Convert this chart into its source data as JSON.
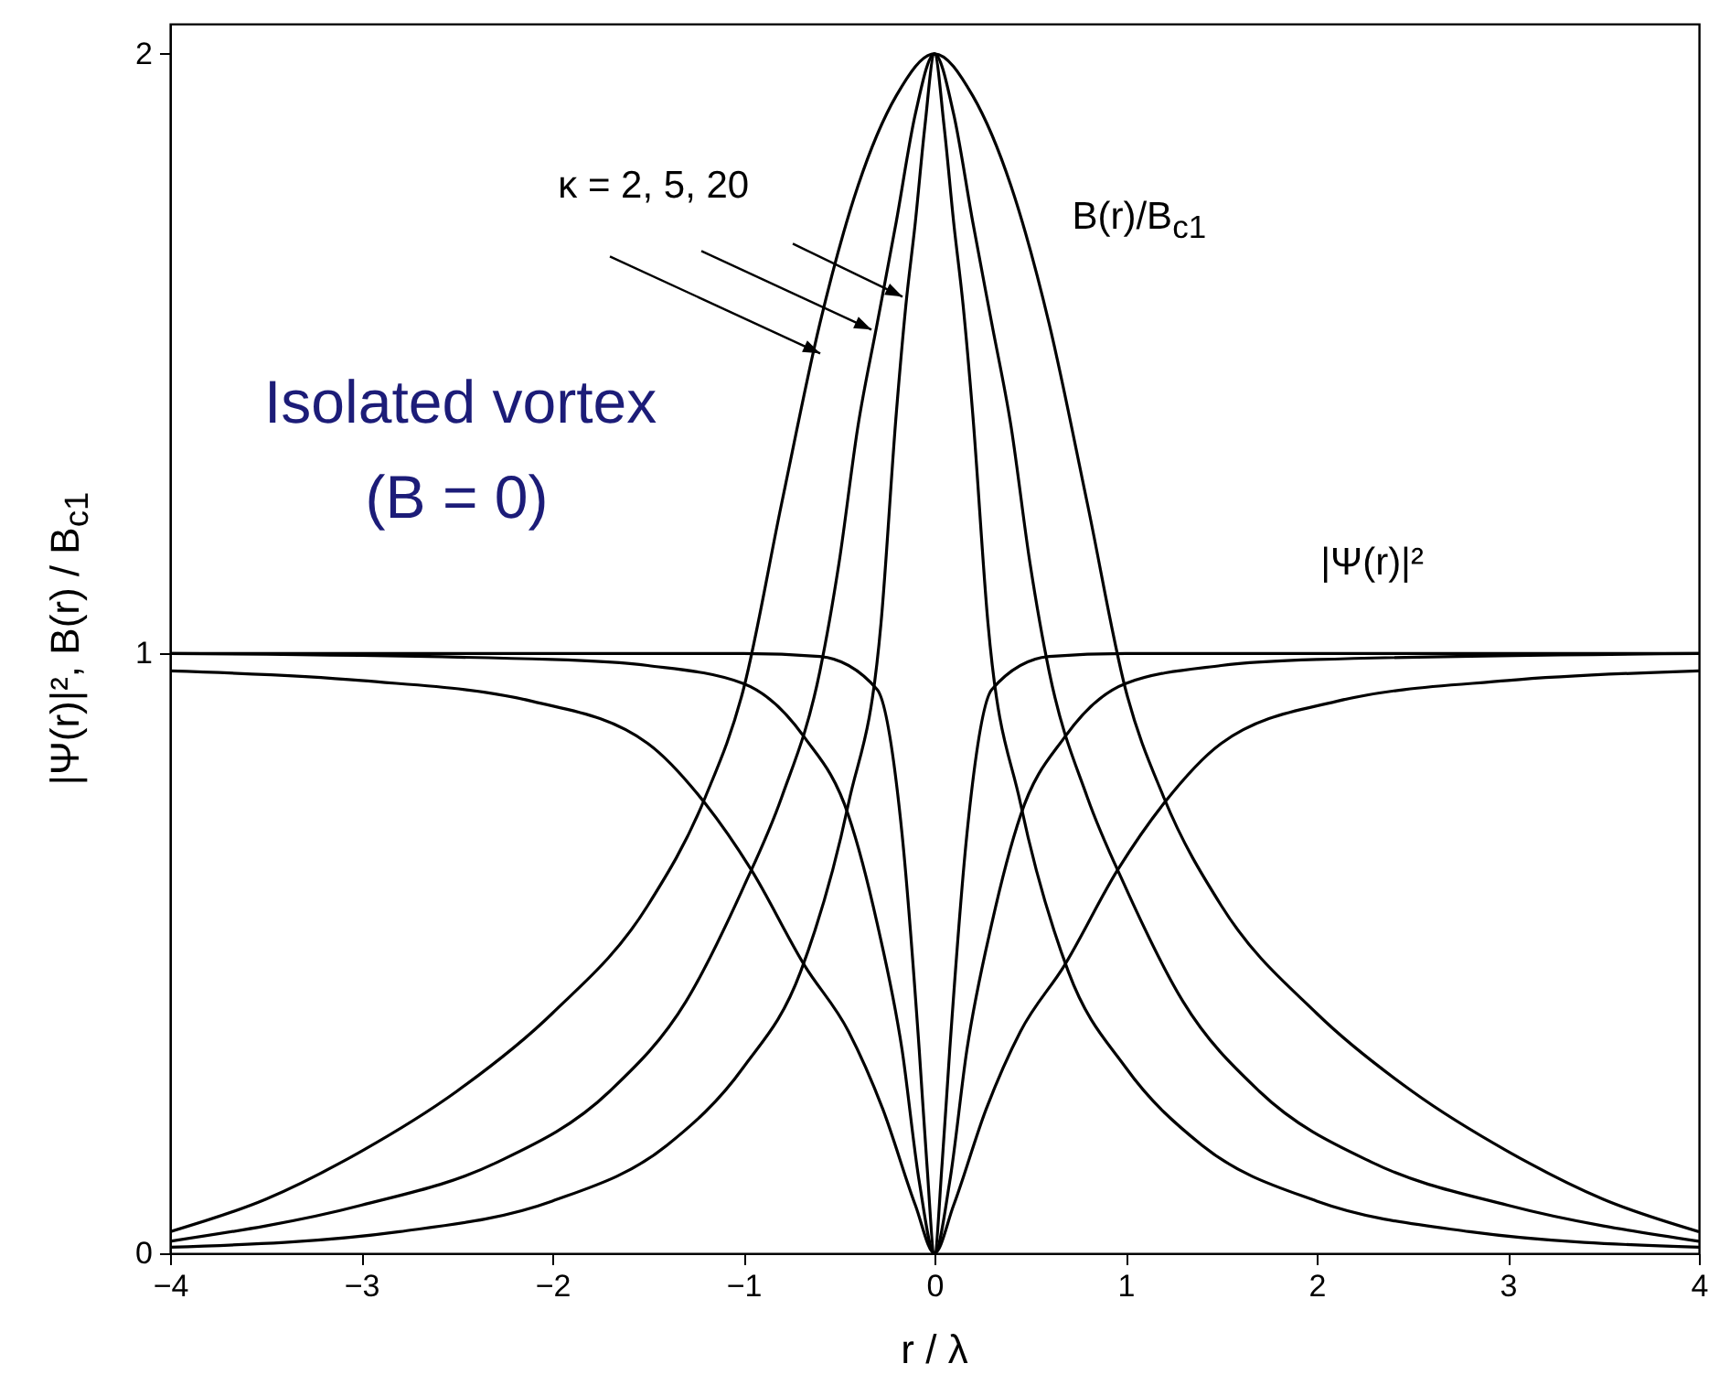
{
  "chart_data": {
    "type": "line",
    "xlabel": "r / λ",
    "ylabel": "|Ψ(r)|²,   B(r) / B$_{c1}$",
    "xlim": [
      -4,
      4
    ],
    "xticks": [
      -4,
      -3,
      -2,
      -1,
      0,
      1,
      2,
      3,
      4
    ],
    "ylim": [
      0,
      2.05
    ],
    "yticks": [
      0,
      1,
      2
    ],
    "grid": false,
    "marker": "none",
    "line_style": "solid",
    "annotations": [
      {
        "text": "κ = 2, 5, 20",
        "x": -0.33,
        "y": 1.54
      },
      "B(r)/B$_{c1}$",
      "|Ψ(r)|²",
      "Isolated vortex",
      "(B = 0)"
    ],
    "series": [
      {
        "color": "#000000",
        "x": [
          -4,
          -3.5,
          -3,
          -2.5,
          -2,
          -1.5,
          -1.2,
          -1,
          -0.8,
          -0.6,
          -0.4,
          -0.2,
          0,
          0.2,
          0.4,
          0.6,
          0.8,
          1,
          1.2,
          1.5,
          2,
          2.5,
          3,
          3.5,
          4
        ],
        "values": [
          0.036,
          0.09,
          0.17,
          0.27,
          0.4,
          0.58,
          0.76,
          0.94,
          1.25,
          1.55,
          1.78,
          1.93,
          2,
          1.93,
          1.78,
          1.55,
          1.25,
          0.94,
          0.76,
          0.58,
          0.4,
          0.27,
          0.17,
          0.09,
          0.036
        ]
      },
      {
        "color": "#000000",
        "x": [
          -4,
          -3,
          -2.3,
          -1.7,
          -1.3,
          -1,
          -0.8,
          -0.6,
          -0.5,
          -0.4,
          -0.3,
          -0.2,
          -0.1,
          0,
          0.1,
          0.2,
          0.3,
          0.4,
          0.5,
          0.6,
          0.8,
          1,
          1.3,
          1.7,
          2.3,
          3,
          4
        ],
        "values": [
          0.02,
          0.08,
          0.15,
          0.27,
          0.42,
          0.61,
          0.76,
          0.97,
          1.15,
          1.38,
          1.55,
          1.72,
          1.9,
          2,
          1.9,
          1.72,
          1.55,
          1.38,
          1.15,
          0.97,
          0.76,
          0.61,
          0.42,
          0.27,
          0.15,
          0.08,
          0.02
        ]
      },
      {
        "color": "#000000",
        "x": [
          -4,
          -2.8,
          -2,
          -1.4,
          -1,
          -0.7,
          -0.45,
          -0.28,
          -0.2,
          -0.15,
          -0.1,
          -0.05,
          0,
          0.05,
          0.1,
          0.15,
          0.2,
          0.28,
          0.45,
          0.7,
          1,
          1.4,
          2,
          2.8,
          4
        ],
        "values": [
          0.01,
          0.036,
          0.087,
          0.18,
          0.31,
          0.47,
          0.75,
          1.05,
          1.4,
          1.58,
          1.72,
          1.88,
          2,
          1.88,
          1.72,
          1.58,
          1.4,
          1.05,
          0.75,
          0.47,
          0.31,
          0.18,
          0.087,
          0.036,
          0.01
        ]
      },
      {
        "color": "#000000",
        "x": [
          -4,
          -1,
          -0.6,
          -0.3,
          -0.17,
          -0.08,
          -0.04,
          0,
          0.04,
          0.08,
          0.17,
          0.3,
          0.6,
          1,
          4
        ],
        "values": [
          1,
          1,
          0.995,
          0.94,
          0.7,
          0.34,
          0.15,
          0,
          0.15,
          0.34,
          0.7,
          0.94,
          0.995,
          1,
          1
        ]
      },
      {
        "color": "#000000",
        "x": [
          -4,
          -2,
          -1.5,
          -1,
          -0.68,
          -0.45,
          -0.3,
          -0.17,
          -0.08,
          0,
          0.08,
          0.17,
          0.3,
          0.45,
          0.68,
          1,
          1.5,
          2,
          4
        ],
        "values": [
          1,
          0.99,
          0.98,
          0.95,
          0.86,
          0.73,
          0.55,
          0.34,
          0.12,
          0,
          0.12,
          0.34,
          0.55,
          0.73,
          0.86,
          0.95,
          0.98,
          0.99,
          1
        ]
      },
      {
        "color": "#000000",
        "x": [
          -4,
          -3,
          -2.1,
          -1.5,
          -1.2,
          -0.96,
          -0.68,
          -0.45,
          -0.27,
          -0.1,
          0,
          0.1,
          0.27,
          0.45,
          0.68,
          0.96,
          1.2,
          1.5,
          2.1,
          3,
          4
        ],
        "values": [
          0.971,
          0.955,
          0.92,
          0.85,
          0.75,
          0.64,
          0.48,
          0.37,
          0.24,
          0.08,
          0,
          0.08,
          0.24,
          0.37,
          0.48,
          0.64,
          0.75,
          0.85,
          0.92,
          0.955,
          0.971
        ]
      }
    ]
  }
}
